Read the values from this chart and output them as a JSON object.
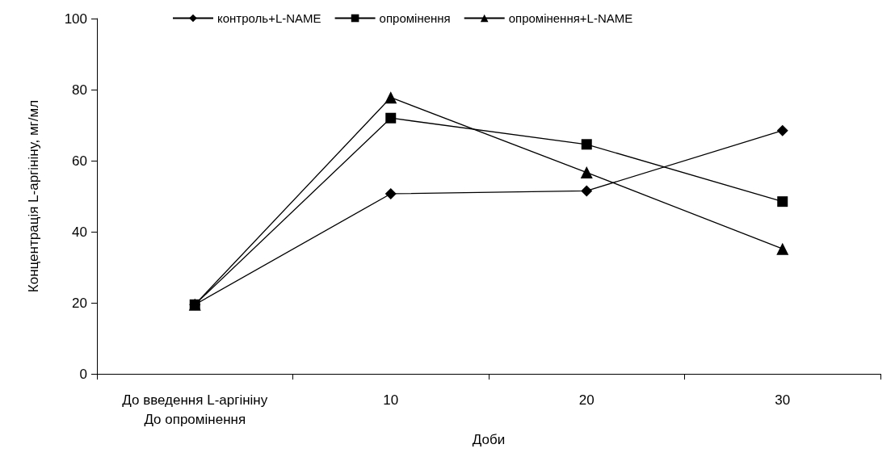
{
  "chart_data": {
    "type": "line",
    "xlabel": "Доби",
    "ylabel": "Концентрація L-аргініну, мг/мл",
    "categories": [
      "До введення L-аргініну\nДо опромінення",
      "10",
      "20",
      "30"
    ],
    "ylim": [
      0,
      100
    ],
    "yticks": [
      0,
      20,
      40,
      60,
      80,
      100
    ],
    "grid": false,
    "legend": "top",
    "line_style": "solid",
    "series": [
      {
        "name": "контроль+L-NAME",
        "color": "#000000",
        "marker": "diamond",
        "values": [
          19.5,
          50.7,
          51.5,
          68.5
        ]
      },
      {
        "name": "опромінення",
        "color": "#000000",
        "marker": "square",
        "values": [
          19.5,
          72,
          64.6,
          48.5
        ]
      },
      {
        "name": "опромінення+L-NAME",
        "color": "#000000",
        "marker": "triangle",
        "values": [
          19.5,
          77.8,
          56.7,
          35.2
        ]
      }
    ]
  }
}
